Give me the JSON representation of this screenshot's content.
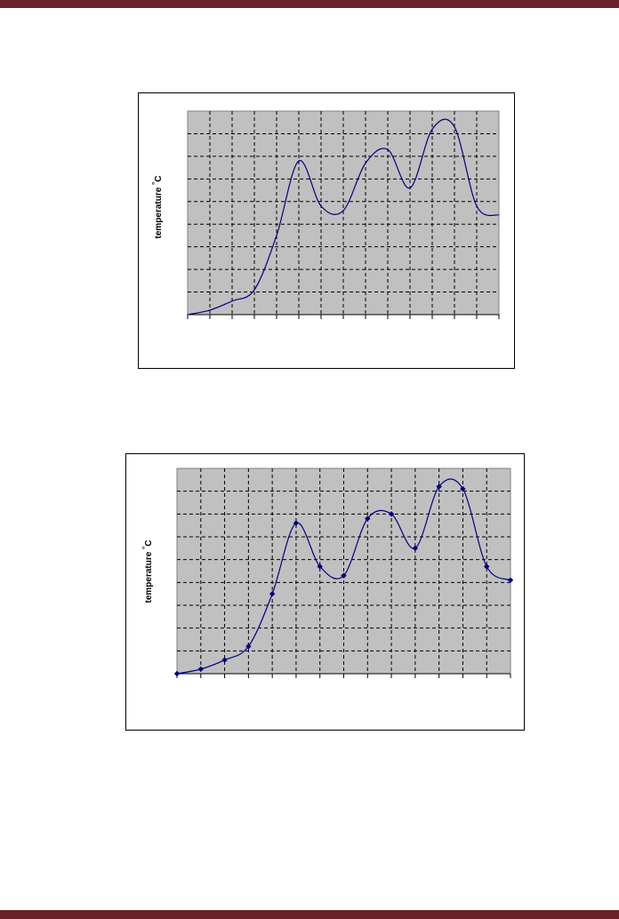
{
  "page": {
    "band_color": "#6b2228"
  },
  "chart_data": [
    {
      "type": "line",
      "smooth": true,
      "markers": false,
      "title": "",
      "xlabel": "",
      "ylabel": "temperature  °C",
      "x": [
        0,
        1,
        2,
        3,
        4,
        5,
        6,
        7,
        8,
        9,
        10,
        11,
        12,
        13,
        14
      ],
      "values": [
        0.0,
        0.2,
        0.6,
        1.1,
        3.5,
        6.8,
        4.8,
        4.6,
        6.7,
        7.3,
        5.6,
        8.2,
        8.3,
        4.8,
        4.4
      ],
      "xlim": [
        0,
        14
      ],
      "ylim": [
        0,
        9
      ],
      "grid": true,
      "plot_background": "#c0c0c0",
      "line_color": "#000080"
    },
    {
      "type": "line",
      "smooth": true,
      "markers": true,
      "marker_shape": "diamond",
      "title": "",
      "xlabel": "",
      "ylabel": "temperature  °C",
      "x": [
        0,
        1,
        2,
        3,
        4,
        5,
        6,
        7,
        8,
        9,
        10,
        11,
        12,
        13,
        14
      ],
      "values": [
        0.0,
        0.2,
        0.6,
        1.2,
        3.5,
        6.6,
        4.7,
        4.3,
        6.8,
        7.0,
        5.5,
        8.2,
        8.1,
        4.7,
        4.1
      ],
      "xlim": [
        0,
        14
      ],
      "ylim": [
        0,
        9
      ],
      "grid": true,
      "plot_background": "#c0c0c0",
      "line_color": "#000080"
    }
  ]
}
